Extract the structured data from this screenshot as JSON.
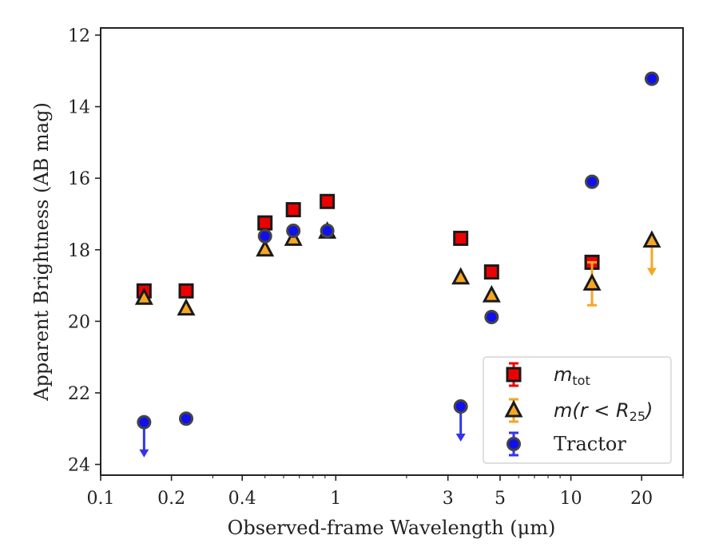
{
  "chart_data": {
    "type": "scatter",
    "xlabel": "Observed-frame Wavelength (μm)",
    "ylabel": "Apparent Brightness (AB mag)",
    "xscale": "log",
    "yaxis_inverted": true,
    "xlim": [
      0.1,
      30
    ],
    "ylim": [
      24.3,
      11.8
    ],
    "x_ticks": [
      {
        "value": 0.1,
        "label": "0.1"
      },
      {
        "value": 0.2,
        "label": "0.2"
      },
      {
        "value": 0.4,
        "label": "0.4"
      },
      {
        "value": 1,
        "label": "1"
      },
      {
        "value": 3,
        "label": "3"
      },
      {
        "value": 5,
        "label": "5"
      },
      {
        "value": 10,
        "label": "10"
      },
      {
        "value": 20,
        "label": "20"
      }
    ],
    "y_ticks": [
      {
        "value": 12,
        "label": "12"
      },
      {
        "value": 14,
        "label": "14"
      },
      {
        "value": 16,
        "label": "16"
      },
      {
        "value": 18,
        "label": "18"
      },
      {
        "value": 20,
        "label": "20"
      },
      {
        "value": 22,
        "label": "22"
      },
      {
        "value": 24,
        "label": "24"
      }
    ],
    "legend_placement": "lower-right",
    "series": [
      {
        "name": "m_tot",
        "legend_main": "m",
        "legend_sub": "tot",
        "marker": "square",
        "color": "#ee0000",
        "error_color": "#ee0000",
        "points": [
          {
            "x": 0.153,
            "y": 19.15,
            "upper_limit": false
          },
          {
            "x": 0.231,
            "y": 19.15,
            "upper_limit": false
          },
          {
            "x": 0.5,
            "y": 17.25,
            "upper_limit": false
          },
          {
            "x": 0.66,
            "y": 16.88,
            "upper_limit": false
          },
          {
            "x": 0.92,
            "y": 16.65,
            "upper_limit": false
          },
          {
            "x": 3.4,
            "y": 17.68,
            "upper_limit": false
          },
          {
            "x": 4.6,
            "y": 18.62,
            "upper_limit": false
          },
          {
            "x": 12.3,
            "y": 18.35,
            "upper_limit": false
          }
        ]
      },
      {
        "name": "m(r < R25)",
        "legend_main": "m(r < R",
        "legend_sub": "25",
        "legend_close": ")",
        "marker": "triangle",
        "color": "#f5a623",
        "error_color": "#f5a623",
        "points": [
          {
            "x": 0.153,
            "y": 19.35,
            "upper_limit": false
          },
          {
            "x": 0.231,
            "y": 19.65,
            "upper_limit": false
          },
          {
            "x": 0.5,
            "y": 18.0,
            "upper_limit": false
          },
          {
            "x": 0.66,
            "y": 17.7,
            "upper_limit": false
          },
          {
            "x": 0.92,
            "y": 17.5,
            "upper_limit": false
          },
          {
            "x": 3.4,
            "y": 18.78,
            "upper_limit": false
          },
          {
            "x": 4.6,
            "y": 19.28,
            "upper_limit": false
          },
          {
            "x": 12.3,
            "y": 18.95,
            "err": 0.6,
            "upper_limit": false
          },
          {
            "x": 22.1,
            "y": 17.75,
            "upper_limit": true
          }
        ]
      },
      {
        "name": "Tractor",
        "legend_main": "Tractor",
        "marker": "circle",
        "color": "#1010ee",
        "error_color": "#3333ee",
        "points": [
          {
            "x": 0.153,
            "y": 22.82,
            "upper_limit": true
          },
          {
            "x": 0.231,
            "y": 22.72,
            "upper_limit": false
          },
          {
            "x": 0.5,
            "y": 17.62,
            "upper_limit": false
          },
          {
            "x": 0.66,
            "y": 17.47,
            "upper_limit": false
          },
          {
            "x": 0.92,
            "y": 17.47,
            "upper_limit": false
          },
          {
            "x": 3.4,
            "y": 22.38,
            "upper_limit": true
          },
          {
            "x": 4.6,
            "y": 19.88,
            "upper_limit": false
          },
          {
            "x": 12.3,
            "y": 16.1,
            "upper_limit": false
          },
          {
            "x": 22.1,
            "y": 13.22,
            "upper_limit": false
          }
        ]
      }
    ]
  }
}
